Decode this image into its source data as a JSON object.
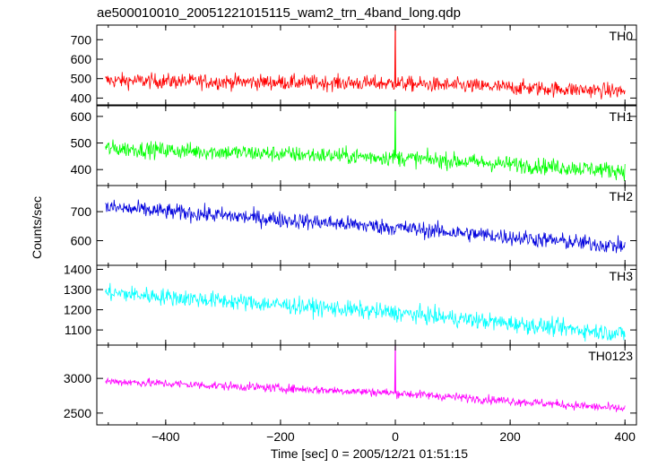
{
  "chart_data": {
    "type": "line",
    "title": "ae500010010_20051221015115_wam2_trn_4band_long.qdp",
    "xlabel": "Time [sec] 0 = 2005/12/21 01:51:15",
    "ylabel": "Counts/sec",
    "xlim": [
      -520,
      420
    ],
    "x_ticks": [
      -400,
      -200,
      0,
      200,
      400
    ],
    "x_tick_labels": [
      "−400",
      "−200",
      "0",
      "200",
      "400"
    ],
    "x_range_data": [
      -505,
      400
    ],
    "grid": false,
    "panels": [
      {
        "name": "TH0",
        "color": "#ff0000",
        "ylim": [
          365,
          775
        ],
        "y_ticks": [
          400,
          500,
          600,
          700
        ],
        "trend": [
          [
            -505,
            490
          ],
          [
            0,
            475
          ],
          [
            400,
            435
          ]
        ],
        "noise": 28,
        "spike": {
          "x": 0,
          "value": 775
        }
      },
      {
        "name": "TH1",
        "color": "#00ff00",
        "ylim": [
          340,
          640
        ],
        "y_ticks": [
          400,
          500,
          600
        ],
        "trend": [
          [
            -505,
            480
          ],
          [
            0,
            445
          ],
          [
            400,
            395
          ]
        ],
        "noise": 22,
        "spike": {
          "x": 0,
          "value": 630
        }
      },
      {
        "name": "TH2",
        "color": "#0000dd",
        "ylim": [
          515,
          790
        ],
        "y_ticks": [
          600,
          700
        ],
        "trend": [
          [
            -505,
            715
          ],
          [
            0,
            645
          ],
          [
            400,
            580
          ]
        ],
        "noise": 20,
        "spike": null
      },
      {
        "name": "TH3",
        "color": "#00ffff",
        "ylim": [
          1025,
          1420
        ],
        "y_ticks": [
          1100,
          1200,
          1300,
          1400
        ],
        "trend": [
          [
            -505,
            1285
          ],
          [
            0,
            1185
          ],
          [
            400,
            1080
          ]
        ],
        "noise": 30,
        "spike": null
      },
      {
        "name": "TH0123",
        "color": "#ff00ff",
        "ylim": [
          2330,
          3480
        ],
        "y_ticks": [
          2500,
          3000
        ],
        "trend": [
          [
            -505,
            2960
          ],
          [
            0,
            2790
          ],
          [
            400,
            2560
          ]
        ],
        "noise": 45,
        "spike": {
          "x": 0,
          "value": 3480
        }
      }
    ]
  }
}
